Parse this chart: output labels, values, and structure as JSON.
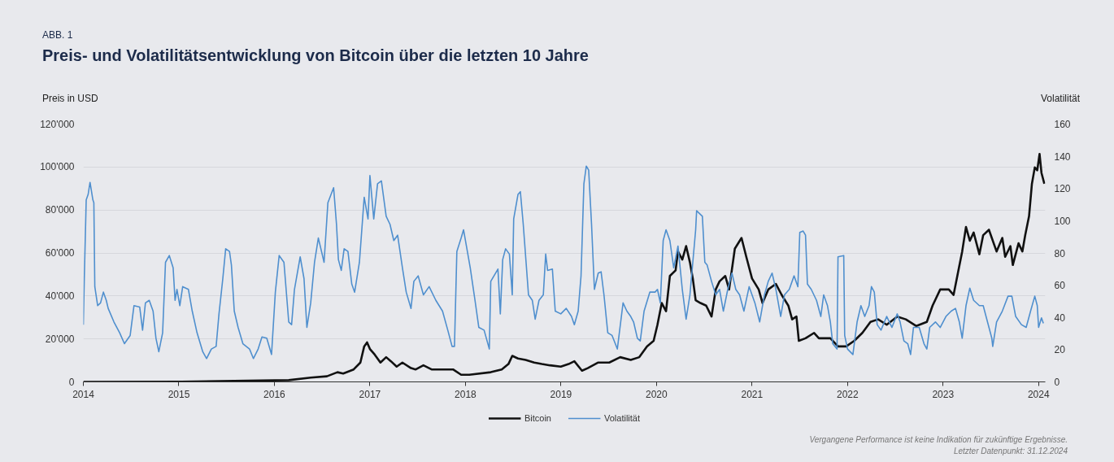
{
  "chart_data": {
    "type": "line",
    "subtitle": "ABB. 1",
    "title": "Preis- und Volatilitätsentwicklung von Bitcoin über die letzten 10 Jahre",
    "ylabel": "Preis in USD",
    "y2label": "Volatilität",
    "xlim": [
      2014,
      2024.07
    ],
    "xticks": [
      2014,
      2015,
      2016,
      2017,
      2018,
      2019,
      2020,
      2021,
      2022,
      2023,
      2024
    ],
    "ylim": [
      0,
      120000
    ],
    "yticks": [
      {
        "value": 0,
        "label": "0"
      },
      {
        "value": 20000,
        "label": "20'000"
      },
      {
        "value": 40000,
        "label": "40'000"
      },
      {
        "value": 60000,
        "label": "60'000"
      },
      {
        "value": 80000,
        "label": "80'000"
      },
      {
        "value": 100000,
        "label": "100'000"
      },
      {
        "value": 120000,
        "label": "120'000"
      }
    ],
    "y2lim": [
      0,
      160
    ],
    "y2ticks": [
      0,
      20,
      40,
      60,
      80,
      100,
      120,
      140,
      160
    ],
    "grid": "y",
    "legend": "bottom",
    "marker": "none",
    "annotations": [
      "Vergangene Performance ist keine Indikation für zukünftige Ergebnisse.",
      "Letzter Datenpunkt: 31.12.2024"
    ],
    "series": [
      {
        "name": "Bitcoin",
        "color": "#111111",
        "x": [
          2014.0,
          2015.03,
          2016.15,
          2016.38,
          2016.55,
          2016.66,
          2016.72,
          2016.83,
          2016.9,
          2016.94,
          2016.97,
          2017.0,
          2017.05,
          2017.11,
          2017.17,
          2017.22,
          2017.28,
          2017.34,
          2017.43,
          2017.48,
          2017.56,
          2017.645,
          2017.76,
          2017.87,
          2017.955,
          2018.04,
          2018.265,
          2018.38,
          2018.45,
          2018.49,
          2018.55,
          2018.63,
          2018.72,
          2018.8,
          2018.885,
          2018.998,
          2019.08,
          2019.14,
          2019.22,
          2019.28,
          2019.39,
          2019.505,
          2019.62,
          2019.73,
          2019.82,
          2019.9,
          2019.97,
          2020.01,
          2020.055,
          2020.1,
          2020.14,
          2020.2,
          2020.225,
          2020.27,
          2020.31,
          2020.35,
          2020.38,
          2020.41,
          2020.46,
          2020.52,
          2020.576,
          2020.62,
          2020.66,
          2020.72,
          2020.76,
          2020.82,
          2020.89,
          2020.94,
          2021.0,
          2021.07,
          2021.11,
          2021.17,
          2021.25,
          2021.31,
          2021.38,
          2021.42,
          2021.465,
          2021.49,
          2021.56,
          2021.65,
          2021.7,
          2021.82,
          2021.9,
          2021.986,
          2022.07,
          2022.155,
          2022.24,
          2022.32,
          2022.41,
          2022.52,
          2022.61,
          2022.72,
          2022.83,
          2022.89,
          2022.97,
          2023.06,
          2023.11,
          2023.155,
          2023.2,
          2023.24,
          2023.28,
          2023.32,
          2023.38,
          2023.42,
          2023.48,
          2023.56,
          2023.62,
          2023.65,
          2023.705,
          2023.73,
          2023.79,
          2023.83,
          2023.86,
          2023.9,
          2023.93,
          2023.96,
          2023.986,
          2024.01,
          2024.03,
          2024.06
        ],
        "values": [
          0,
          100,
          800,
          2000,
          2600,
          4500,
          3900,
          5800,
          9000,
          16500,
          18400,
          15300,
          12700,
          9000,
          11500,
          9600,
          7100,
          9000,
          6400,
          5800,
          7700,
          5800,
          5800,
          5800,
          3300,
          3300,
          4500,
          5800,
          8300,
          12100,
          10900,
          10200,
          9000,
          8300,
          7700,
          7100,
          8300,
          9600,
          5200,
          6400,
          9000,
          9000,
          11500,
          10200,
          11500,
          16500,
          19100,
          26600,
          36700,
          32900,
          49300,
          51900,
          60700,
          56900,
          63200,
          55600,
          48100,
          38000,
          36700,
          35500,
          30400,
          43000,
          46800,
          49300,
          43000,
          62000,
          67000,
          58200,
          48100,
          43000,
          36700,
          43000,
          45600,
          40500,
          35500,
          29100,
          30400,
          19100,
          20300,
          22800,
          20300,
          20300,
          16500,
          16500,
          19100,
          22800,
          27900,
          29100,
          26600,
          30400,
          29100,
          26000,
          27900,
          35500,
          43000,
          43000,
          40500,
          50600,
          60700,
          72100,
          65700,
          69500,
          59400,
          68300,
          70800,
          60700,
          67000,
          58200,
          63200,
          54400,
          64500,
          60700,
          68300,
          77100,
          92200,
          99800,
          98500,
          106100,
          97300,
          92200
        ]
      },
      {
        "name": "Volatilität",
        "color": "#4f8fce",
        "axis": "y2",
        "x": [
          2014.0,
          2014.01,
          2014.03,
          2014.05,
          2014.07,
          2014.1,
          2014.11,
          2014.12,
          2014.15,
          2014.18,
          2014.21,
          2014.24,
          2014.26,
          2014.32,
          2014.38,
          2014.43,
          2014.49,
          2014.53,
          2014.59,
          2014.62,
          2014.65,
          2014.69,
          2014.73,
          2014.76,
          2014.79,
          2014.83,
          2014.86,
          2014.9,
          2014.94,
          2014.96,
          2014.98,
          2015.01,
          2015.04,
          2015.1,
          2015.14,
          2015.19,
          2015.25,
          2015.29,
          2015.34,
          2015.39,
          2015.42,
          2015.46,
          2015.49,
          2015.53,
          2015.55,
          2015.58,
          2015.62,
          2015.67,
          2015.74,
          2015.78,
          2015.83,
          2015.87,
          2015.92,
          2015.97,
          2016.01,
          2016.05,
          2016.1,
          2016.15,
          2016.18,
          2016.21,
          2016.27,
          2016.31,
          2016.34,
          2016.38,
          2016.42,
          2016.46,
          2016.52,
          2016.56,
          2016.62,
          2016.65,
          2016.67,
          2016.7,
          2016.73,
          2016.77,
          2016.81,
          2016.84,
          2016.89,
          2016.94,
          2016.98,
          2017.0,
          2017.04,
          2017.08,
          2017.12,
          2017.17,
          2017.21,
          2017.25,
          2017.29,
          2017.34,
          2017.38,
          2017.43,
          2017.46,
          2017.505,
          2017.56,
          2017.62,
          2017.69,
          2017.76,
          2017.815,
          2017.86,
          2017.885,
          2017.91,
          2017.955,
          2017.98,
          2018.01,
          2018.05,
          2018.1,
          2018.14,
          2018.195,
          2018.25,
          2018.265,
          2018.34,
          2018.365,
          2018.39,
          2018.42,
          2018.46,
          2018.49,
          2018.505,
          2018.55,
          2018.575,
          2018.605,
          2018.66,
          2018.7,
          2018.73,
          2018.77,
          2018.815,
          2018.84,
          2018.86,
          2018.91,
          2018.94,
          2018.998,
          2019.055,
          2019.11,
          2019.14,
          2019.18,
          2019.21,
          2019.24,
          2019.265,
          2019.29,
          2019.32,
          2019.35,
          2019.39,
          2019.42,
          2019.45,
          2019.49,
          2019.535,
          2019.59,
          2019.65,
          2019.69,
          2019.73,
          2019.76,
          2019.8,
          2019.83,
          2019.87,
          2019.93,
          2019.985,
          2020.01,
          2020.04,
          2020.07,
          2020.1,
          2020.14,
          2020.18,
          2020.225,
          2020.27,
          2020.31,
          2020.35,
          2020.41,
          2020.42,
          2020.48,
          2020.506,
          2020.53,
          2020.576,
          2020.62,
          2020.66,
          2020.7,
          2020.746,
          2020.79,
          2020.83,
          2020.87,
          2020.915,
          2020.97,
          2021.03,
          2021.08,
          2021.13,
          2021.17,
          2021.21,
          2021.25,
          2021.3,
          2021.34,
          2021.39,
          2021.44,
          2021.48,
          2021.5,
          2021.535,
          2021.56,
          2021.58,
          2021.62,
          2021.675,
          2021.72,
          2021.75,
          2021.79,
          2021.82,
          2021.845,
          2021.89,
          2021.9,
          2021.96,
          2021.97,
          2022.0,
          2022.056,
          2022.1,
          2022.14,
          2022.18,
          2022.225,
          2022.25,
          2022.28,
          2022.31,
          2022.35,
          2022.41,
          2022.465,
          2022.52,
          2022.55,
          2022.59,
          2022.63,
          2022.66,
          2022.69,
          2022.75,
          2022.8,
          2022.83,
          2022.86,
          2022.92,
          2022.97,
          2023.03,
          2023.085,
          2023.13,
          2023.17,
          2023.2,
          2023.24,
          2023.28,
          2023.32,
          2023.38,
          2023.42,
          2023.465,
          2023.51,
          2023.52,
          2023.56,
          2023.62,
          2023.68,
          2023.72,
          2023.76,
          2023.82,
          2023.87,
          2023.916,
          2023.96,
          2023.986,
          2024.0,
          2024.03,
          2024.05
        ],
        "values": [
          35.5,
          64.1,
          112.9,
          116.3,
          123.8,
          112.9,
          111.2,
          59.1,
          47.3,
          49.0,
          55.7,
          50.6,
          45.6,
          37.2,
          30.5,
          23.7,
          28.8,
          47.3,
          46.4,
          32.1,
          49.0,
          50.6,
          43.9,
          27.1,
          18.7,
          30.5,
          74.2,
          78.4,
          70.8,
          50.6,
          57.4,
          47.3,
          59.1,
          57.4,
          43.9,
          30.5,
          18.7,
          14.5,
          20.4,
          22.0,
          42.2,
          64.1,
          82.6,
          80.9,
          72.5,
          43.9,
          33.8,
          23.7,
          20.4,
          14.5,
          20.4,
          27.9,
          27.1,
          17.0,
          55.7,
          78.4,
          74.2,
          37.2,
          35.5,
          57.4,
          77.6,
          64.1,
          33.8,
          49.0,
          74.2,
          89.3,
          74.2,
          111.2,
          120.5,
          97.8,
          75.9,
          69.2,
          82.6,
          80.9,
          60.7,
          55.7,
          74.2,
          114.6,
          101.1,
          128.1,
          101.1,
          123.0,
          124.7,
          102.8,
          97.8,
          87.7,
          91.0,
          70.8,
          55.7,
          45.6,
          62.4,
          65.8,
          54.0,
          59.1,
          50.6,
          43.9,
          32.1,
          22.0,
          22.0,
          80.9,
          89.3,
          94.4,
          84.3,
          70.8,
          50.6,
          33.8,
          32.1,
          20.4,
          62.4,
          70.0,
          42.2,
          75.9,
          82.6,
          79.3,
          54.0,
          101.1,
          116.3,
          118.0,
          97.8,
          54.0,
          50.6,
          38.9,
          50.6,
          54.0,
          79.3,
          69.2,
          70.0,
          43.9,
          42.2,
          45.6,
          40.6,
          35.5,
          43.9,
          65.8,
          123.0,
          133.9,
          131.4,
          97.8,
          57.4,
          67.5,
          68.3,
          54.0,
          30.5,
          28.8,
          20.4,
          49.0,
          43.9,
          40.6,
          37.2,
          27.1,
          25.4,
          43.9,
          55.7,
          55.7,
          57.4,
          49.0,
          87.7,
          94.4,
          87.7,
          70.8,
          84.3,
          57.4,
          38.9,
          54.0,
          94.4,
          106.2,
          102.8,
          74.2,
          72.5,
          62.4,
          54.0,
          57.4,
          43.9,
          57.4,
          67.5,
          57.4,
          54.0,
          43.9,
          59.1,
          49.0,
          37.2,
          54.0,
          62.4,
          67.5,
          57.4,
          40.6,
          54.0,
          57.4,
          65.8,
          59.1,
          92.7,
          93.6,
          91.0,
          60.7,
          57.4,
          50.6,
          40.6,
          54.0,
          47.3,
          37.2,
          23.7,
          20.4,
          77.6,
          78.4,
          28.8,
          20.4,
          17.0,
          37.2,
          47.3,
          40.6,
          47.3,
          59.1,
          55.7,
          35.5,
          32.1,
          40.6,
          33.8,
          42.2,
          37.2,
          25.4,
          23.7,
          17.0,
          33.8,
          33.8,
          23.7,
          20.4,
          33.8,
          37.2,
          33.8,
          40.6,
          43.9,
          45.6,
          37.2,
          27.1,
          47.3,
          58.2,
          50.6,
          47.3,
          47.3,
          37.2,
          27.1,
          22.0,
          37.2,
          43.9,
          53.2,
          53.2,
          40.6,
          35.5,
          33.8,
          43.9,
          53.2,
          47.3,
          33.8,
          39.7,
          36.3
        ]
      }
    ]
  }
}
